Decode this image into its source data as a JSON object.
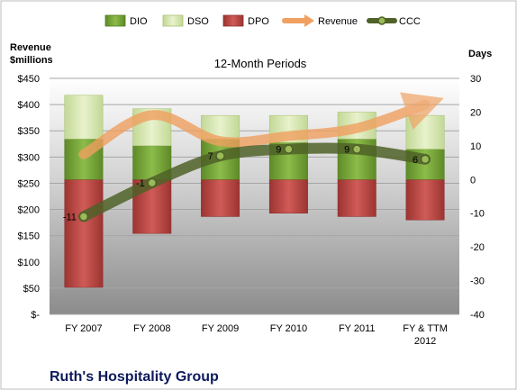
{
  "chart_data": {
    "type": "bar",
    "title": "12-Month Periods",
    "company": "Ruth's Hospitality Group",
    "categories": [
      "FY 2007",
      "FY 2008",
      "FY 2009",
      "FY 2010",
      "FY 2011",
      "FY & TTM 2012"
    ],
    "y_left": {
      "label_line1": "Revenue",
      "label_line2": "$millions",
      "min": 0,
      "max": 450,
      "step": 50,
      "ticks": [
        "$-",
        "$50",
        "$100",
        "$150",
        "$200",
        "$250",
        "$300",
        "$350",
        "$400",
        "$450"
      ]
    },
    "y_right": {
      "label": "Days",
      "min": -40,
      "max": 30,
      "step": 10,
      "ticks": [
        "-40",
        "-30",
        "-20",
        "-10",
        "0",
        "10",
        "20",
        "30"
      ]
    },
    "series": [
      {
        "name": "DIO",
        "kind": "bar-stack-up",
        "values": [
          12,
          10,
          12,
          11,
          12,
          9
        ]
      },
      {
        "name": "DSO",
        "kind": "bar-stack-up",
        "values": [
          13,
          11,
          7,
          8,
          8,
          10
        ]
      },
      {
        "name": "DPO",
        "kind": "bar-stack-down",
        "values": [
          -32,
          -16,
          -11,
          -10,
          -11,
          -12
        ]
      },
      {
        "name": "Revenue",
        "kind": "line",
        "axis": "left",
        "values": [
          305,
          380,
          330,
          340,
          355,
          400
        ]
      },
      {
        "name": "CCC",
        "kind": "line",
        "axis": "right",
        "values": [
          -11,
          -1,
          7,
          9,
          9,
          6
        ],
        "data_labels": [
          "-11",
          "-1",
          "7",
          "9",
          "9",
          "6"
        ]
      }
    ],
    "legend": "top",
    "grid": true,
    "colors": {
      "DIO": "#77a33a",
      "DSO": "#d8e8b0",
      "DPO": "#c0504d",
      "Revenue": "#f0a060",
      "CCC": "#4f6228"
    }
  }
}
